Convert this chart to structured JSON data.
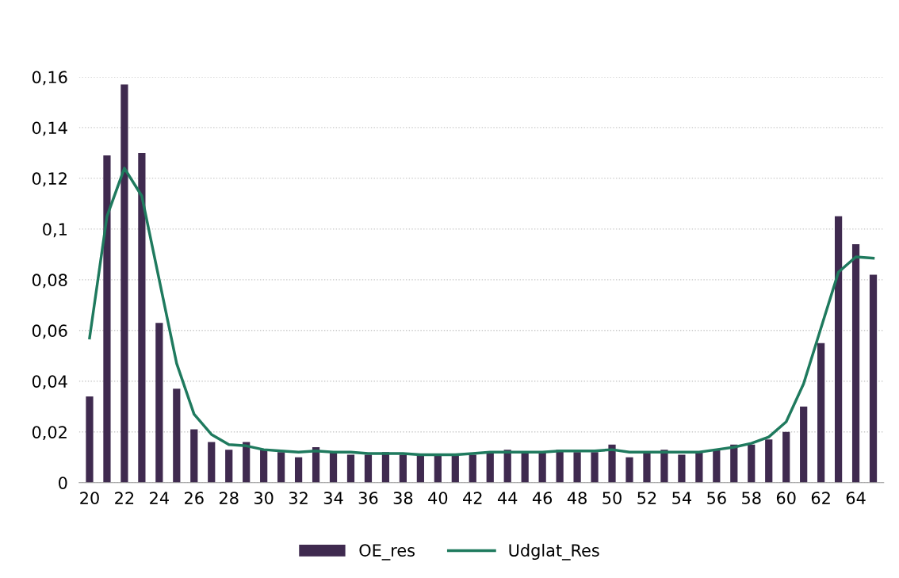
{
  "chart_data": {
    "type": "bar",
    "categories": [
      "20",
      null,
      "22",
      null,
      "24",
      null,
      "26",
      null,
      "28",
      null,
      "30",
      null,
      "32",
      null,
      "34",
      null,
      "36",
      null,
      "38",
      null,
      "40",
      null,
      "42",
      null,
      "44",
      null,
      "46",
      null,
      "48",
      null,
      "50",
      null,
      "52",
      null,
      "54",
      null,
      "56",
      null,
      "58",
      null,
      "60",
      null,
      "62",
      null,
      "64",
      null
    ],
    "series": [
      {
        "name": "OE_res",
        "color": "#3f2a4f",
        "values": [
          0.034,
          0.129,
          0.157,
          0.13,
          0.063,
          0.037,
          0.021,
          0.016,
          0.013,
          0.016,
          0.013,
          0.012,
          0.01,
          0.014,
          0.012,
          0.011,
          0.011,
          0.012,
          0.011,
          0.011,
          0.011,
          0.011,
          0.011,
          0.012,
          0.013,
          0.012,
          0.012,
          0.013,
          0.012,
          0.012,
          0.015,
          0.01,
          0.012,
          0.013,
          0.011,
          0.012,
          0.013,
          0.015,
          0.015,
          0.017,
          0.02,
          0.03,
          0.055,
          0.105,
          0.094,
          0.082
        ]
      },
      {
        "name": "Udglat_Res",
        "type": "line",
        "color": "#1f7a5e",
        "values": [
          0.057,
          0.105,
          0.124,
          0.113,
          0.08,
          0.047,
          0.027,
          0.019,
          0.015,
          0.0145,
          0.013,
          0.0125,
          0.012,
          0.0125,
          0.012,
          0.012,
          0.0115,
          0.0115,
          0.0115,
          0.011,
          0.011,
          0.011,
          0.0115,
          0.012,
          0.012,
          0.012,
          0.012,
          0.0125,
          0.0125,
          0.0125,
          0.013,
          0.012,
          0.012,
          0.012,
          0.012,
          0.012,
          0.013,
          0.014,
          0.0155,
          0.018,
          0.024,
          0.039,
          0.061,
          0.083,
          0.089,
          0.0885
        ]
      }
    ],
    "ylim": [
      0,
      0.16
    ],
    "yticks": [
      0,
      {
        "value": 0.02,
        "label": "0,02"
      },
      {
        "value": 0.04,
        "label": "0,04"
      },
      {
        "value": 0.06,
        "label": "0,06"
      },
      {
        "value": 0.08,
        "label": "0,08"
      },
      {
        "value": 0.1,
        "label": "0,1"
      },
      {
        "value": 0.12,
        "label": "0,12"
      },
      {
        "value": 0.14,
        "label": "0,14"
      },
      {
        "value": 0.16,
        "label": "0,16"
      }
    ],
    "grid": "y",
    "legend": "bottom",
    "marker": "none",
    "line_style": "solid"
  }
}
